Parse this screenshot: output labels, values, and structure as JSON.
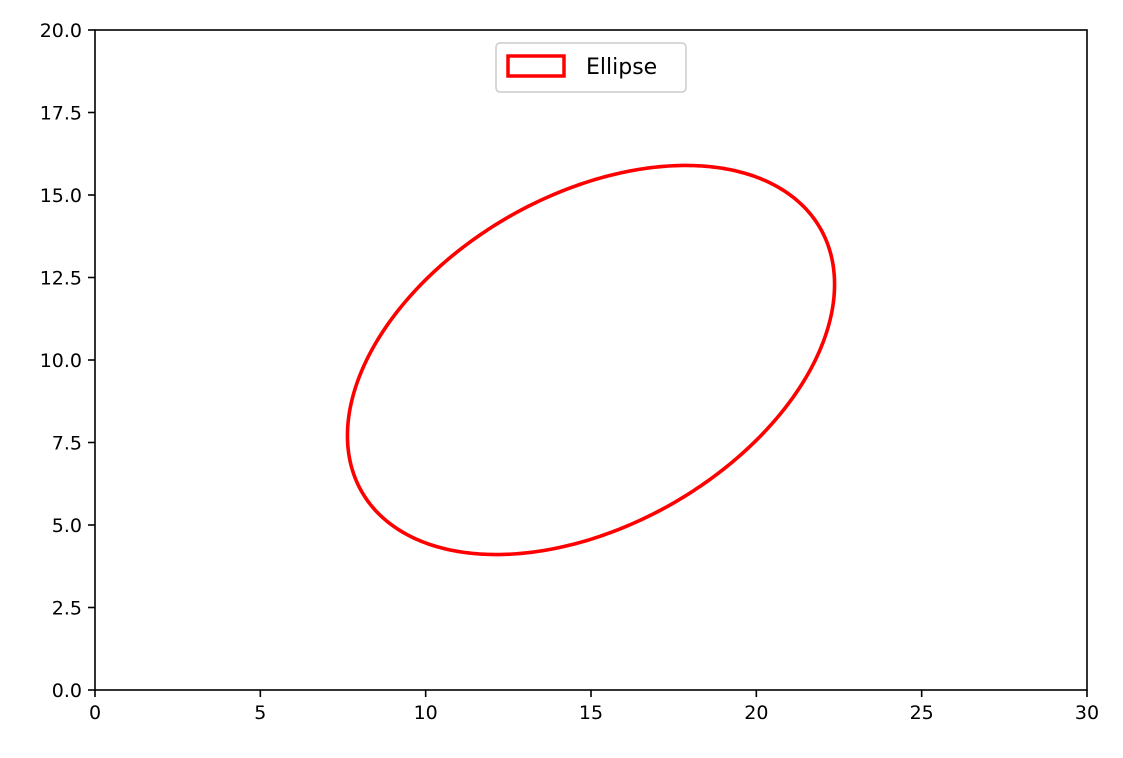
{
  "chart_data": {
    "type": "line",
    "title": "",
    "xlabel": "",
    "ylabel": "",
    "xlim": [
      0,
      30
    ],
    "ylim": [
      0,
      20
    ],
    "x_ticks": [
      0,
      5,
      10,
      15,
      20,
      25,
      30
    ],
    "x_tick_labels": [
      "0",
      "5",
      "10",
      "15",
      "20",
      "25",
      "30"
    ],
    "y_ticks": [
      0,
      2.5,
      5,
      7.5,
      10,
      12.5,
      15,
      17.5,
      20
    ],
    "y_tick_labels": [
      "0.0",
      "2.5",
      "5.0",
      "7.5",
      "10.0",
      "12.5",
      "15.0",
      "17.5",
      "20.0"
    ],
    "grid": false,
    "legend": {
      "position": "upper-center",
      "entries": [
        {
          "label": "Ellipse",
          "color": "#ff0000",
          "style": "outlined-patch"
        }
      ]
    },
    "series": [
      {
        "name": "Ellipse",
        "kind": "ellipse",
        "center": [
          15,
          10
        ],
        "width": 16,
        "height": 10,
        "angle_deg": 30,
        "edgecolor": "#ff0000",
        "fill": "none"
      }
    ]
  }
}
